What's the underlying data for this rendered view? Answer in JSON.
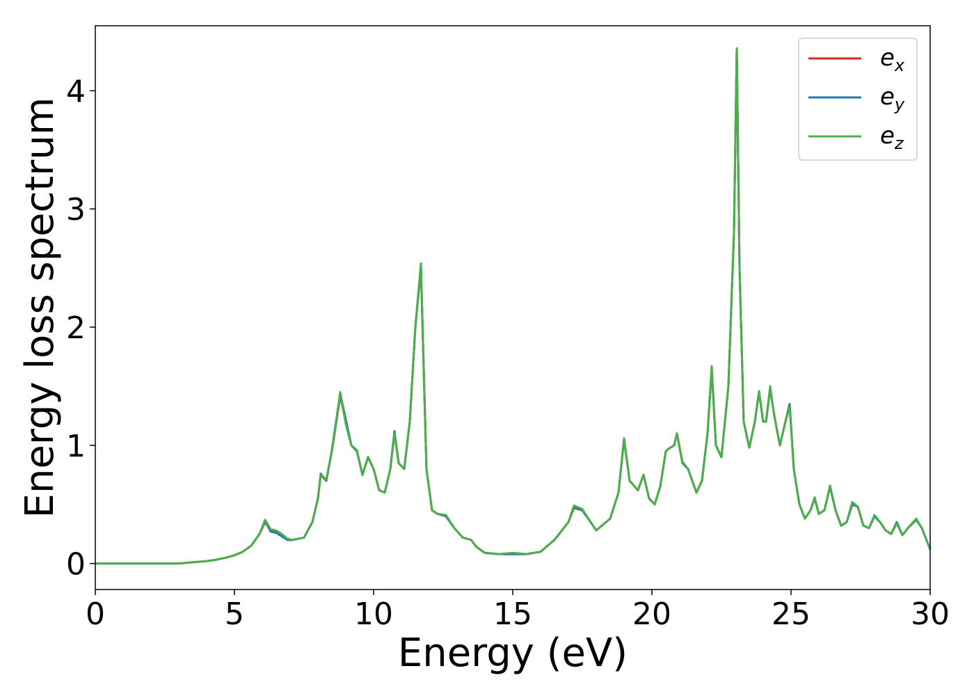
{
  "chart_data": {
    "type": "line",
    "xlabel": "Energy (eV)",
    "ylabel": "Energy loss spectrum",
    "xlim": [
      0,
      30
    ],
    "ylim": [
      -0.22,
      4.55
    ],
    "x_ticks": [
      "0",
      "5",
      "10",
      "15",
      "20",
      "25",
      "30"
    ],
    "y_ticks": [
      "0",
      "1",
      "2",
      "3",
      "4"
    ],
    "legend_position": "top-right",
    "grid": false,
    "series": [
      {
        "name": "x",
        "base": "e",
        "color": "#d62728",
        "x": [
          0,
          1,
          2,
          3,
          3.5,
          4,
          4.3,
          4.7,
          5,
          5.3,
          5.6,
          5.9,
          6.1,
          6.3,
          6.5,
          6.7,
          6.9,
          7.1,
          7.5,
          7.8,
          8.0,
          8.1,
          8.3,
          8.5,
          8.6,
          8.8,
          9.0,
          9.2,
          9.4,
          9.6,
          9.8,
          10.0,
          10.2,
          10.4,
          10.6,
          10.75,
          10.9,
          11.1,
          11.3,
          11.5,
          11.7,
          11.9,
          12.1,
          12.3,
          12.6,
          12.9,
          13.2,
          13.5,
          13.7,
          14.0,
          14.5,
          15.0,
          15.5,
          16.0,
          16.5,
          17.0,
          17.2,
          17.5,
          17.8,
          18.0,
          18.5,
          18.8,
          19.0,
          19.2,
          19.5,
          19.7,
          19.9,
          20.1,
          20.3,
          20.5,
          20.6,
          20.8,
          20.9,
          21.1,
          21.3,
          21.6,
          21.8,
          22.0,
          22.15,
          22.3,
          22.5,
          22.75,
          22.95,
          23.05,
          23.15,
          23.3,
          23.5,
          23.7,
          23.85,
          24.0,
          24.1,
          24.25,
          24.4,
          24.6,
          24.8,
          24.95,
          25.1,
          25.3,
          25.5,
          25.7,
          25.85,
          26.0,
          26.2,
          26.4,
          26.6,
          26.8,
          27.0,
          27.2,
          27.4,
          27.6,
          27.8,
          28.0,
          28.2,
          28.4,
          28.6,
          28.8,
          29.0,
          29.2,
          29.5,
          29.7,
          30.0
        ],
        "y": [
          0,
          0,
          0,
          0,
          0.01,
          0.02,
          0.03,
          0.05,
          0.07,
          0.1,
          0.15,
          0.25,
          0.35,
          0.28,
          0.27,
          0.24,
          0.2,
          0.2,
          0.22,
          0.35,
          0.55,
          0.75,
          0.7,
          0.95,
          1.1,
          1.42,
          1.2,
          1.0,
          0.95,
          0.75,
          0.9,
          0.8,
          0.62,
          0.6,
          0.8,
          1.1,
          0.85,
          0.8,
          1.2,
          2.0,
          2.5,
          0.8,
          0.45,
          0.42,
          0.4,
          0.3,
          0.22,
          0.2,
          0.14,
          0.09,
          0.08,
          0.08,
          0.08,
          0.1,
          0.2,
          0.35,
          0.47,
          0.45,
          0.35,
          0.28,
          0.38,
          0.6,
          1.05,
          0.7,
          0.62,
          0.75,
          0.55,
          0.5,
          0.65,
          0.95,
          0.97,
          1.0,
          1.1,
          0.85,
          0.8,
          0.6,
          0.7,
          1.1,
          1.65,
          1.0,
          0.9,
          1.5,
          2.8,
          4.35,
          2.5,
          1.2,
          0.98,
          1.2,
          1.45,
          1.2,
          1.2,
          1.48,
          1.25,
          1.0,
          1.2,
          1.35,
          0.8,
          0.5,
          0.38,
          0.45,
          0.55,
          0.42,
          0.45,
          0.65,
          0.45,
          0.32,
          0.35,
          0.5,
          0.48,
          0.32,
          0.3,
          0.4,
          0.35,
          0.28,
          0.25,
          0.35,
          0.24,
          0.3,
          0.37,
          0.3,
          0.12
        ]
      },
      {
        "name": "y",
        "base": "e",
        "color": "#1f77b4",
        "x": [
          0,
          1,
          2,
          3,
          3.5,
          4,
          4.3,
          4.7,
          5,
          5.3,
          5.6,
          5.9,
          6.1,
          6.3,
          6.5,
          6.7,
          6.9,
          7.1,
          7.5,
          7.8,
          8.0,
          8.1,
          8.3,
          8.5,
          8.6,
          8.8,
          9.0,
          9.2,
          9.4,
          9.6,
          9.8,
          10.0,
          10.2,
          10.4,
          10.6,
          10.75,
          10.9,
          11.1,
          11.3,
          11.5,
          11.7,
          11.9,
          12.1,
          12.3,
          12.6,
          12.9,
          13.2,
          13.5,
          13.7,
          14.0,
          14.5,
          15.0,
          15.5,
          16.0,
          16.5,
          17.0,
          17.2,
          17.5,
          17.8,
          18.0,
          18.5,
          18.8,
          19.0,
          19.2,
          19.5,
          19.7,
          19.9,
          20.1,
          20.3,
          20.5,
          20.6,
          20.8,
          20.9,
          21.1,
          21.3,
          21.6,
          21.8,
          22.0,
          22.15,
          22.3,
          22.5,
          22.75,
          22.95,
          23.05,
          23.15,
          23.3,
          23.5,
          23.7,
          23.85,
          24.0,
          24.1,
          24.25,
          24.4,
          24.6,
          24.8,
          24.95,
          25.1,
          25.3,
          25.5,
          25.7,
          25.85,
          26.0,
          26.2,
          26.4,
          26.6,
          26.8,
          27.0,
          27.2,
          27.4,
          27.6,
          27.8,
          28.0,
          28.2,
          28.4,
          28.6,
          28.8,
          29.0,
          29.2,
          29.5,
          29.7,
          30.0
        ],
        "y": [
          0,
          0,
          0,
          0,
          0.01,
          0.02,
          0.03,
          0.05,
          0.07,
          0.1,
          0.15,
          0.25,
          0.36,
          0.27,
          0.26,
          0.23,
          0.2,
          0.2,
          0.22,
          0.35,
          0.55,
          0.76,
          0.7,
          0.96,
          1.12,
          1.44,
          1.22,
          1.0,
          0.95,
          0.75,
          0.9,
          0.8,
          0.62,
          0.6,
          0.8,
          1.12,
          0.85,
          0.8,
          1.2,
          2.0,
          2.52,
          0.8,
          0.45,
          0.42,
          0.4,
          0.3,
          0.22,
          0.2,
          0.14,
          0.09,
          0.08,
          0.08,
          0.08,
          0.1,
          0.2,
          0.35,
          0.48,
          0.45,
          0.35,
          0.28,
          0.38,
          0.6,
          1.05,
          0.7,
          0.62,
          0.75,
          0.55,
          0.5,
          0.65,
          0.95,
          0.97,
          1.0,
          1.1,
          0.85,
          0.8,
          0.6,
          0.7,
          1.1,
          1.65,
          1.0,
          0.9,
          1.5,
          2.8,
          4.35,
          2.5,
          1.2,
          0.98,
          1.2,
          1.45,
          1.2,
          1.2,
          1.48,
          1.25,
          1.0,
          1.2,
          1.35,
          0.8,
          0.5,
          0.38,
          0.45,
          0.55,
          0.42,
          0.45,
          0.65,
          0.45,
          0.32,
          0.35,
          0.5,
          0.48,
          0.32,
          0.3,
          0.4,
          0.35,
          0.28,
          0.25,
          0.35,
          0.24,
          0.3,
          0.37,
          0.3,
          0.12
        ]
      },
      {
        "name": "z",
        "base": "e",
        "color": "#4daf4a",
        "x": [
          0,
          1,
          2,
          3,
          3.5,
          4,
          4.3,
          4.7,
          5,
          5.3,
          5.6,
          5.9,
          6.1,
          6.3,
          6.5,
          6.7,
          6.9,
          7.1,
          7.5,
          7.8,
          8.0,
          8.1,
          8.3,
          8.5,
          8.6,
          8.8,
          9.0,
          9.2,
          9.4,
          9.6,
          9.8,
          10.0,
          10.2,
          10.4,
          10.6,
          10.75,
          10.9,
          11.1,
          11.3,
          11.5,
          11.7,
          11.9,
          12.1,
          12.3,
          12.6,
          12.9,
          13.2,
          13.5,
          13.7,
          14.0,
          14.5,
          15.0,
          15.5,
          16.0,
          16.5,
          17.0,
          17.2,
          17.5,
          17.8,
          18.0,
          18.5,
          18.8,
          19.0,
          19.2,
          19.5,
          19.7,
          19.9,
          20.1,
          20.3,
          20.5,
          20.6,
          20.8,
          20.9,
          21.1,
          21.3,
          21.6,
          21.8,
          22.0,
          22.15,
          22.3,
          22.5,
          22.75,
          22.95,
          23.05,
          23.15,
          23.3,
          23.5,
          23.7,
          23.85,
          24.0,
          24.1,
          24.25,
          24.4,
          24.6,
          24.8,
          24.95,
          25.1,
          25.3,
          25.5,
          25.7,
          25.85,
          26.0,
          26.2,
          26.4,
          26.6,
          26.8,
          27.0,
          27.2,
          27.4,
          27.6,
          27.8,
          28.0,
          28.2,
          28.4,
          28.6,
          28.8,
          29.0,
          29.2,
          29.5,
          29.7,
          30.0
        ],
        "y": [
          0,
          0,
          0,
          0,
          0.01,
          0.02,
          0.03,
          0.05,
          0.07,
          0.1,
          0.15,
          0.25,
          0.37,
          0.29,
          0.28,
          0.25,
          0.21,
          0.2,
          0.22,
          0.35,
          0.55,
          0.75,
          0.71,
          0.95,
          1.1,
          1.45,
          1.18,
          1.0,
          0.96,
          0.75,
          0.9,
          0.8,
          0.62,
          0.6,
          0.8,
          1.1,
          0.85,
          0.8,
          1.2,
          2.0,
          2.54,
          0.8,
          0.45,
          0.42,
          0.41,
          0.3,
          0.22,
          0.2,
          0.14,
          0.09,
          0.08,
          0.09,
          0.08,
          0.1,
          0.2,
          0.35,
          0.49,
          0.46,
          0.35,
          0.28,
          0.38,
          0.6,
          1.06,
          0.7,
          0.62,
          0.75,
          0.55,
          0.5,
          0.65,
          0.95,
          0.97,
          1.0,
          1.1,
          0.86,
          0.8,
          0.6,
          0.7,
          1.1,
          1.67,
          1.0,
          0.9,
          1.5,
          2.8,
          4.36,
          2.5,
          1.2,
          0.98,
          1.2,
          1.46,
          1.2,
          1.2,
          1.5,
          1.25,
          1.0,
          1.2,
          1.33,
          0.8,
          0.5,
          0.38,
          0.45,
          0.56,
          0.42,
          0.45,
          0.66,
          0.45,
          0.32,
          0.35,
          0.52,
          0.48,
          0.32,
          0.3,
          0.41,
          0.35,
          0.28,
          0.25,
          0.34,
          0.24,
          0.3,
          0.38,
          0.3,
          0.12
        ]
      }
    ]
  }
}
